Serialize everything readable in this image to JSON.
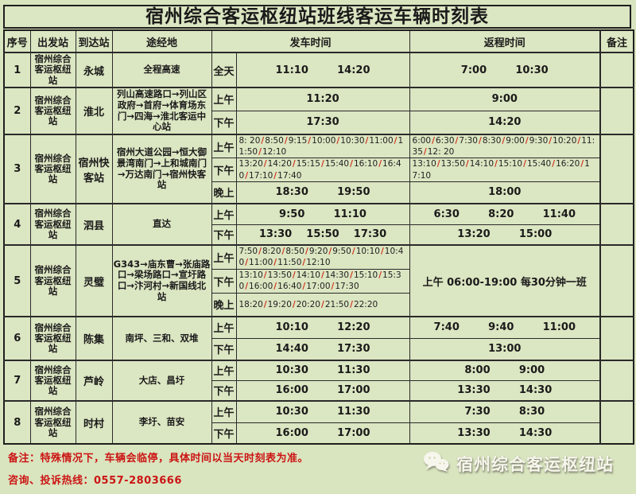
{
  "title": "宿州综合客运枢纽站班线客运车辆时刻表",
  "headers": {
    "no": "序号",
    "from": "出发站",
    "to": "到达站",
    "via": "途经地",
    "depart": "发车时间",
    "return": "返程时间",
    "note": "备注"
  },
  "rows": [
    {
      "no": "1",
      "from": "宿州综合客运枢纽站",
      "to": "永城",
      "via": "全程高速",
      "note": "",
      "periods": [
        {
          "label": "全天",
          "depart": "11:10        14:20",
          "return": "7:00        10:30"
        }
      ]
    },
    {
      "no": "2",
      "from": "宿州综合客运枢纽站",
      "to": "淮北",
      "via": "列山高速路口→列山区政府→首府→体育场东门→四海→淮北客运中心站",
      "note": "",
      "periods": [
        {
          "label": "上午",
          "depart": "11:20",
          "return": "9:00"
        },
        {
          "label": "下午",
          "depart": "17:30",
          "return": "14:20"
        }
      ]
    },
    {
      "no": "3",
      "from": "宿州综合客运枢纽站",
      "to": "宿州快客站",
      "via": "宿州大道公园→恒大御景湾南门→上和城南门→万达南门→宿州快客站",
      "note": "",
      "periods": [
        {
          "label": "上午",
          "depart": "8: 20/8:50/9:15/10:00/10:30/11:00/11:50/12:10",
          "return": "6:00/6:30/7:30/8:30/9:00/9:30/10:20/11:35/12: 20"
        },
        {
          "label": "下午",
          "depart": "13:20/14:20/15:15/15:40/16:10/16:40/17:10/17:40",
          "return": "13:10/13:50/14:10/15:10/15:40/16:20/17:10"
        },
        {
          "label": "晚上",
          "depart": "18:30        19:50",
          "return": "18:00"
        }
      ]
    },
    {
      "no": "4",
      "from": "宿州综合客运枢纽站",
      "to": "泗县",
      "via": "直达",
      "note": "",
      "periods": [
        {
          "label": "上午",
          "depart": "9:50        11:10",
          "return": "6:30        8:20        11:40"
        },
        {
          "label": "下午",
          "depart": "13:30    15:50    17:30",
          "return": "13:20        15:00"
        }
      ]
    },
    {
      "no": "5",
      "from": "宿州综合客运枢纽站",
      "to": "灵璧",
      "via": "G343→庙东曹→张庙路口→梁场路口→宣圩路口→汴河村→新国线北站",
      "note": "",
      "return_merged": "上午 06:00-19:00  每30分钟一班",
      "periods": [
        {
          "label": "上午",
          "depart": "7:50/8:20/8:50/9:20/9:50/10:10/10:40/11:00/11:50/12:10"
        },
        {
          "label": "下午",
          "depart": "13:10/13:50/14:10/14:30/15:10/15:30/16:00/16:40/17:00/17:30"
        },
        {
          "label": "晚上",
          "depart": "18:20/19:20/20:20/21:50/22:20"
        }
      ]
    },
    {
      "no": "6",
      "from": "宿州综合客运枢纽站",
      "to": "陈集",
      "via": "南坪、三和、双堆",
      "note": "",
      "periods": [
        {
          "label": "上午",
          "depart": "10:10        12:20",
          "return": "7:40        9:40        11:00"
        },
        {
          "label": "下午",
          "depart": "14:40        17:30",
          "return": "13:00"
        }
      ]
    },
    {
      "no": "7",
      "from": "宿州综合客运枢纽站",
      "to": "芦岭",
      "via": "大店、昌圩",
      "note": "",
      "periods": [
        {
          "label": "上午",
          "depart": "10:30        11:30",
          "return": "8:00        9:00"
        },
        {
          "label": "下午",
          "depart": "16:00        17:00",
          "return": "13:30        14:30"
        }
      ]
    },
    {
      "no": "8",
      "from": "宿州综合客运枢纽站",
      "to": "时村",
      "via": "李圩、苗安",
      "note": "",
      "periods": [
        {
          "label": "上午",
          "depart": "10:30        11:30",
          "return": "7:30        8:30"
        },
        {
          "label": "下午",
          "depart": "16:00        17:00",
          "return": "13:30        14:30"
        }
      ]
    }
  ],
  "footer": {
    "note1": "备注：特殊情况下，车辆会临停，具体时间以当天时刻表为准。",
    "note2": "咨询、投诉热线：0557-2803666",
    "brand": "宿州综合客运枢纽站",
    "brand_icon": "wechat-bubbles"
  },
  "colors": {
    "background": "#d9e5bf",
    "cell_background": "#dbe6c2",
    "border": "#1f1f1f",
    "slash_red": "#d0301c",
    "footer_red": "#cc1414",
    "brand_text": "#f7f6ec"
  }
}
